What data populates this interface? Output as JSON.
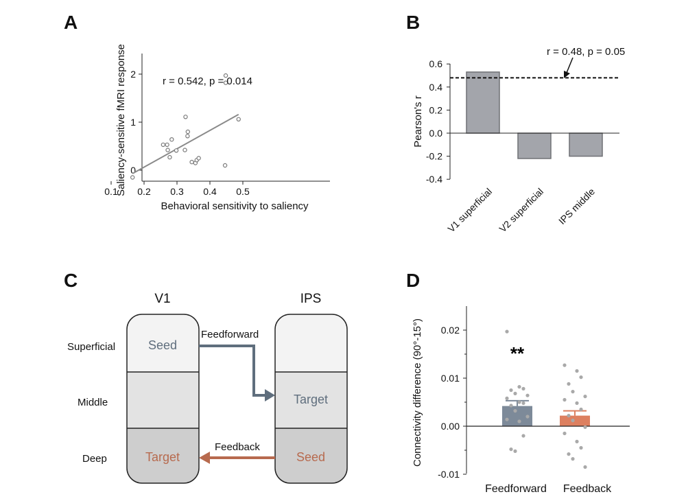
{
  "chart_data": [
    {
      "panel": "A",
      "type": "scatter",
      "xlabel": "Behavioral sensitivity to saliency",
      "ylabel": "Saliency-sensitive fMRI response",
      "xlim": [
        0.1,
        0.55
      ],
      "ylim": [
        -0.2,
        2.4
      ],
      "xticks": [
        "0.1",
        "0.2",
        "0.3",
        "0.4",
        "0.5"
      ],
      "yticks": [
        "0",
        "1",
        "2"
      ],
      "annotation": "r = 0.542, p = 0.014",
      "points": [
        {
          "x": 0.165,
          "y": -0.15
        },
        {
          "x": 0.258,
          "y": 0.53
        },
        {
          "x": 0.27,
          "y": 0.53
        },
        {
          "x": 0.272,
          "y": 0.42
        },
        {
          "x": 0.278,
          "y": 0.27
        },
        {
          "x": 0.284,
          "y": 0.64
        },
        {
          "x": 0.298,
          "y": 0.41
        },
        {
          "x": 0.324,
          "y": 0.42
        },
        {
          "x": 0.326,
          "y": 1.11
        },
        {
          "x": 0.332,
          "y": 0.71
        },
        {
          "x": 0.333,
          "y": 0.8
        },
        {
          "x": 0.345,
          "y": 0.17
        },
        {
          "x": 0.356,
          "y": 0.15
        },
        {
          "x": 0.36,
          "y": 0.21
        },
        {
          "x": 0.366,
          "y": 0.25
        },
        {
          "x": 0.446,
          "y": 0.1
        },
        {
          "x": 0.448,
          "y": 1.97
        },
        {
          "x": 0.448,
          "y": 1.82
        },
        {
          "x": 0.487,
          "y": 1.06
        }
      ],
      "fit_line": {
        "x": [
          0.165,
          0.487
        ],
        "y": [
          -0.07,
          1.16
        ]
      }
    },
    {
      "panel": "B",
      "type": "bar",
      "ylabel": "Pearson's r",
      "ylim": [
        -0.4,
        0.6
      ],
      "yticks": [
        "0.6",
        "0.4",
        "0.2",
        "0.0",
        "-0.2",
        "-0.4"
      ],
      "categories": [
        "V1 superficial",
        "V2 superficial",
        "IPS middle"
      ],
      "values": [
        0.53,
        -0.22,
        -0.2
      ],
      "threshold": 0.48,
      "annotation": "r = 0.48, p = 0.05"
    },
    {
      "panel": "D",
      "type": "bar",
      "ylabel": "Connectivity difference (90°-15°)",
      "ylim": [
        -0.01,
        0.025
      ],
      "yticks": [
        "0.02",
        "0.01",
        "0.00",
        "-0.01"
      ],
      "categories": [
        "Feedforward",
        "Feedback"
      ],
      "values": [
        0.0042,
        0.0022
      ],
      "errors": [
        0.0011,
        0.001
      ],
      "colors": [
        "#7d8a99",
        "#dd8060"
      ],
      "significance": "**",
      "points": [
        [
          0.0197,
          0.0082,
          0.0078,
          0.0075,
          0.0068,
          0.0064,
          0.0058,
          0.005,
          0.0048,
          0.0043,
          0.0032,
          0.002,
          0.0014,
          0.001,
          -0.002,
          -0.0048,
          -0.0052
        ],
        [
          0.0127,
          0.0115,
          0.0102,
          0.0088,
          0.0072,
          0.0062,
          0.0055,
          0.0048,
          0.0035,
          0.0022,
          0.0012,
          -0.0002,
          -0.0015,
          -0.0032,
          -0.0045,
          -0.0058,
          -0.0068,
          -0.0085
        ]
      ]
    }
  ],
  "panels": {
    "A": {
      "letter": "A"
    },
    "B": {
      "letter": "B"
    },
    "C": {
      "letter": "C"
    },
    "D": {
      "letter": "D"
    }
  },
  "diagram": {
    "left_region": "V1",
    "right_region": "IPS",
    "layers": [
      "Superficial",
      "Middle",
      "Deep"
    ],
    "v1_seed": "Seed",
    "v1_target": "Target",
    "ips_target": "Target",
    "ips_seed": "Seed",
    "feedforward_label": "Feedforward",
    "feedback_label": "Feedback",
    "colors": {
      "feedforward": "#5f6e7d",
      "feedback": "#b76a4e",
      "superficial": "#f3f3f3",
      "middle": "#e3e3e3",
      "deep": "#cecece"
    }
  }
}
